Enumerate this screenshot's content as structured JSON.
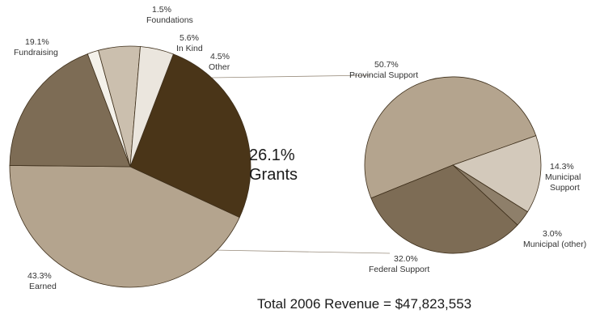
{
  "chart_data": [
    {
      "type": "pie",
      "slices": [
        {
          "label": "Grants",
          "value": 26.1,
          "value_text": "26.1%",
          "color": "#4a3518"
        },
        {
          "label": "Earned",
          "value": 43.3,
          "value_text": "43.3%",
          "color": "#b4a48e"
        },
        {
          "label": "Fundraising",
          "value": 19.1,
          "value_text": "19.1%",
          "color": "#7d6c55"
        },
        {
          "label": "Foundations",
          "value": 1.5,
          "value_text": "1.5%",
          "color": "#f4f1ea"
        },
        {
          "label": "In Kind",
          "value": 5.6,
          "value_text": "5.6%",
          "color": "#cbbfae"
        },
        {
          "label": "Other",
          "value": 4.5,
          "value_text": "4.5%",
          "color": "#ebe6de"
        }
      ]
    },
    {
      "type": "pie",
      "slices": [
        {
          "label": "Provincial Support",
          "value": 50.7,
          "value_text": "50.7%",
          "color": "#b4a48e"
        },
        {
          "label": "Municipal Support",
          "value": 14.3,
          "value_text": "14.3%",
          "color": "#d3c9bb"
        },
        {
          "label": "Municipal (other)",
          "value": 3.0,
          "value_text": "3.0%",
          "color": "#8e7f6a"
        },
        {
          "label": "Federal Support",
          "value": 32.0,
          "value_text": "32.0%",
          "color": "#7d6c55"
        }
      ]
    }
  ],
  "total_text": "Total 2006 Revenue = $47,823,553"
}
